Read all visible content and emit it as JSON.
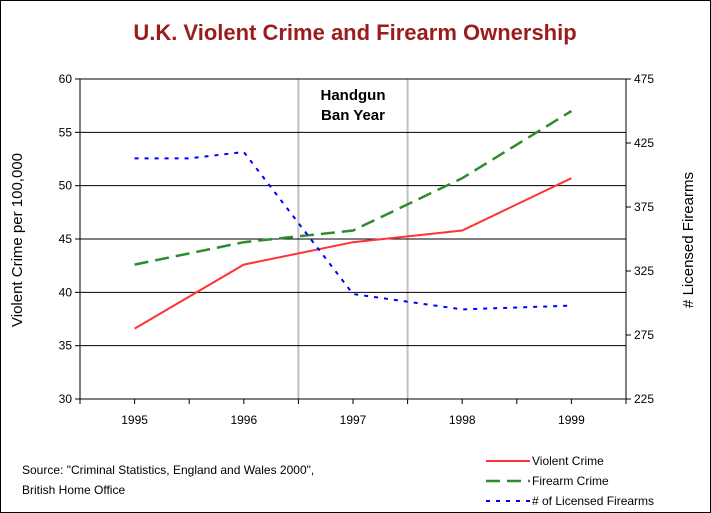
{
  "chart_data": {
    "type": "line",
    "title": "U.K. Violent Crime and Firearm Ownership",
    "ylabel_left": "Violent Crime per 100,000",
    "ylabel_right": "# Licensed Firearms",
    "categories": [
      "1995",
      "1996",
      "1997",
      "1998",
      "1999"
    ],
    "ylim_left": [
      30,
      60
    ],
    "yticks_left": [
      "30",
      "35",
      "40",
      "45",
      "50",
      "55",
      "60"
    ],
    "ylim_right": [
      225,
      475
    ],
    "yticks_right": [
      "225",
      "275",
      "325",
      "375",
      "425",
      "475"
    ],
    "grid": true,
    "highlight": {
      "label_line1": "Handgun",
      "label_line2": "Ban Year",
      "from": 1996.5,
      "to": 1997.5
    },
    "series": [
      {
        "name": "Violent Crime",
        "axis": "left",
        "color": "#ff3333",
        "dash": "solid",
        "values": [
          36.6,
          42.6,
          44.7,
          45.8,
          50.7
        ]
      },
      {
        "name": "Firearm Crime",
        "axis": "left",
        "color": "#2e8b2e",
        "dash": "dashed",
        "values": [
          42.6,
          44.7,
          45.8,
          50.7,
          57.0
        ]
      },
      {
        "name": "# of Licensed Firearms",
        "axis": "right",
        "color": "#0000ff",
        "dash": "dotted",
        "values": [
          413,
          413,
          418,
          307,
          295,
          298
        ],
        "x": [
          1995,
          1995.5,
          1996,
          1997,
          1998,
          1999
        ]
      }
    ],
    "legend_position": "bottom-right"
  },
  "source": {
    "line1": "Source: \"Criminal Statistics, England and Wales 2000\",",
    "line2": "British Home Office"
  },
  "colors": {
    "title": "#9b1c1c",
    "grid": "#000000",
    "highlight": "#c0c0c0"
  }
}
